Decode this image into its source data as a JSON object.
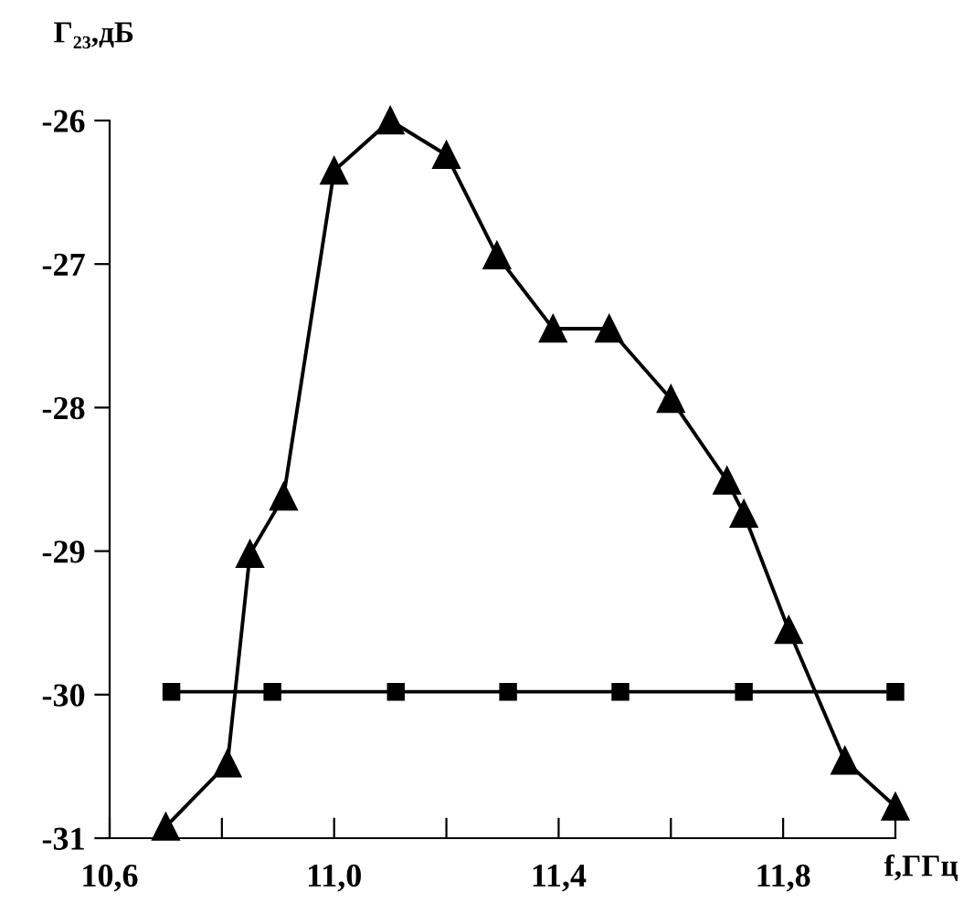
{
  "chart_data": {
    "type": "line",
    "xlabel": "f,ГГц",
    "ylabel": "Г₂₃,дБ",
    "xlim": [
      10.6,
      12.0
    ],
    "ylim": [
      -31,
      -26
    ],
    "xticks": [
      {
        "value": 10.6,
        "label": "10,6"
      },
      {
        "value": 10.8,
        "label": null
      },
      {
        "value": 11.0,
        "label": "11,0"
      },
      {
        "value": 11.2,
        "label": null
      },
      {
        "value": 11.4,
        "label": "11,4"
      },
      {
        "value": 11.6,
        "label": null
      },
      {
        "value": 11.8,
        "label": "11,8"
      },
      {
        "value": 12.0,
        "label": null
      }
    ],
    "yticks": [
      -31,
      -30,
      -29,
      -28,
      -27,
      -26
    ],
    "grid": false,
    "series": [
      {
        "color": "#000000",
        "marker": "triangle",
        "line_style": "solid",
        "x": [
          10.7,
          10.81,
          10.85,
          10.91,
          11.0,
          11.1,
          11.2,
          11.29,
          11.39,
          11.49,
          11.6,
          11.7,
          11.73,
          11.81,
          11.91,
          12.0
        ],
        "values": [
          -30.92,
          -30.48,
          -29.02,
          -28.62,
          -26.35,
          -26.0,
          -26.24,
          -26.94,
          -27.45,
          -27.45,
          -27.94,
          -28.51,
          -28.74,
          -29.55,
          -30.46,
          -30.78
        ]
      },
      {
        "color": "#000000",
        "marker": "square",
        "line_style": "solid",
        "x": [
          10.71,
          10.89,
          11.11,
          11.31,
          11.51,
          11.73,
          12.0
        ],
        "values": [
          -29.98,
          -29.98,
          -29.98,
          -29.98,
          -29.98,
          -29.98,
          -29.98
        ]
      }
    ]
  }
}
